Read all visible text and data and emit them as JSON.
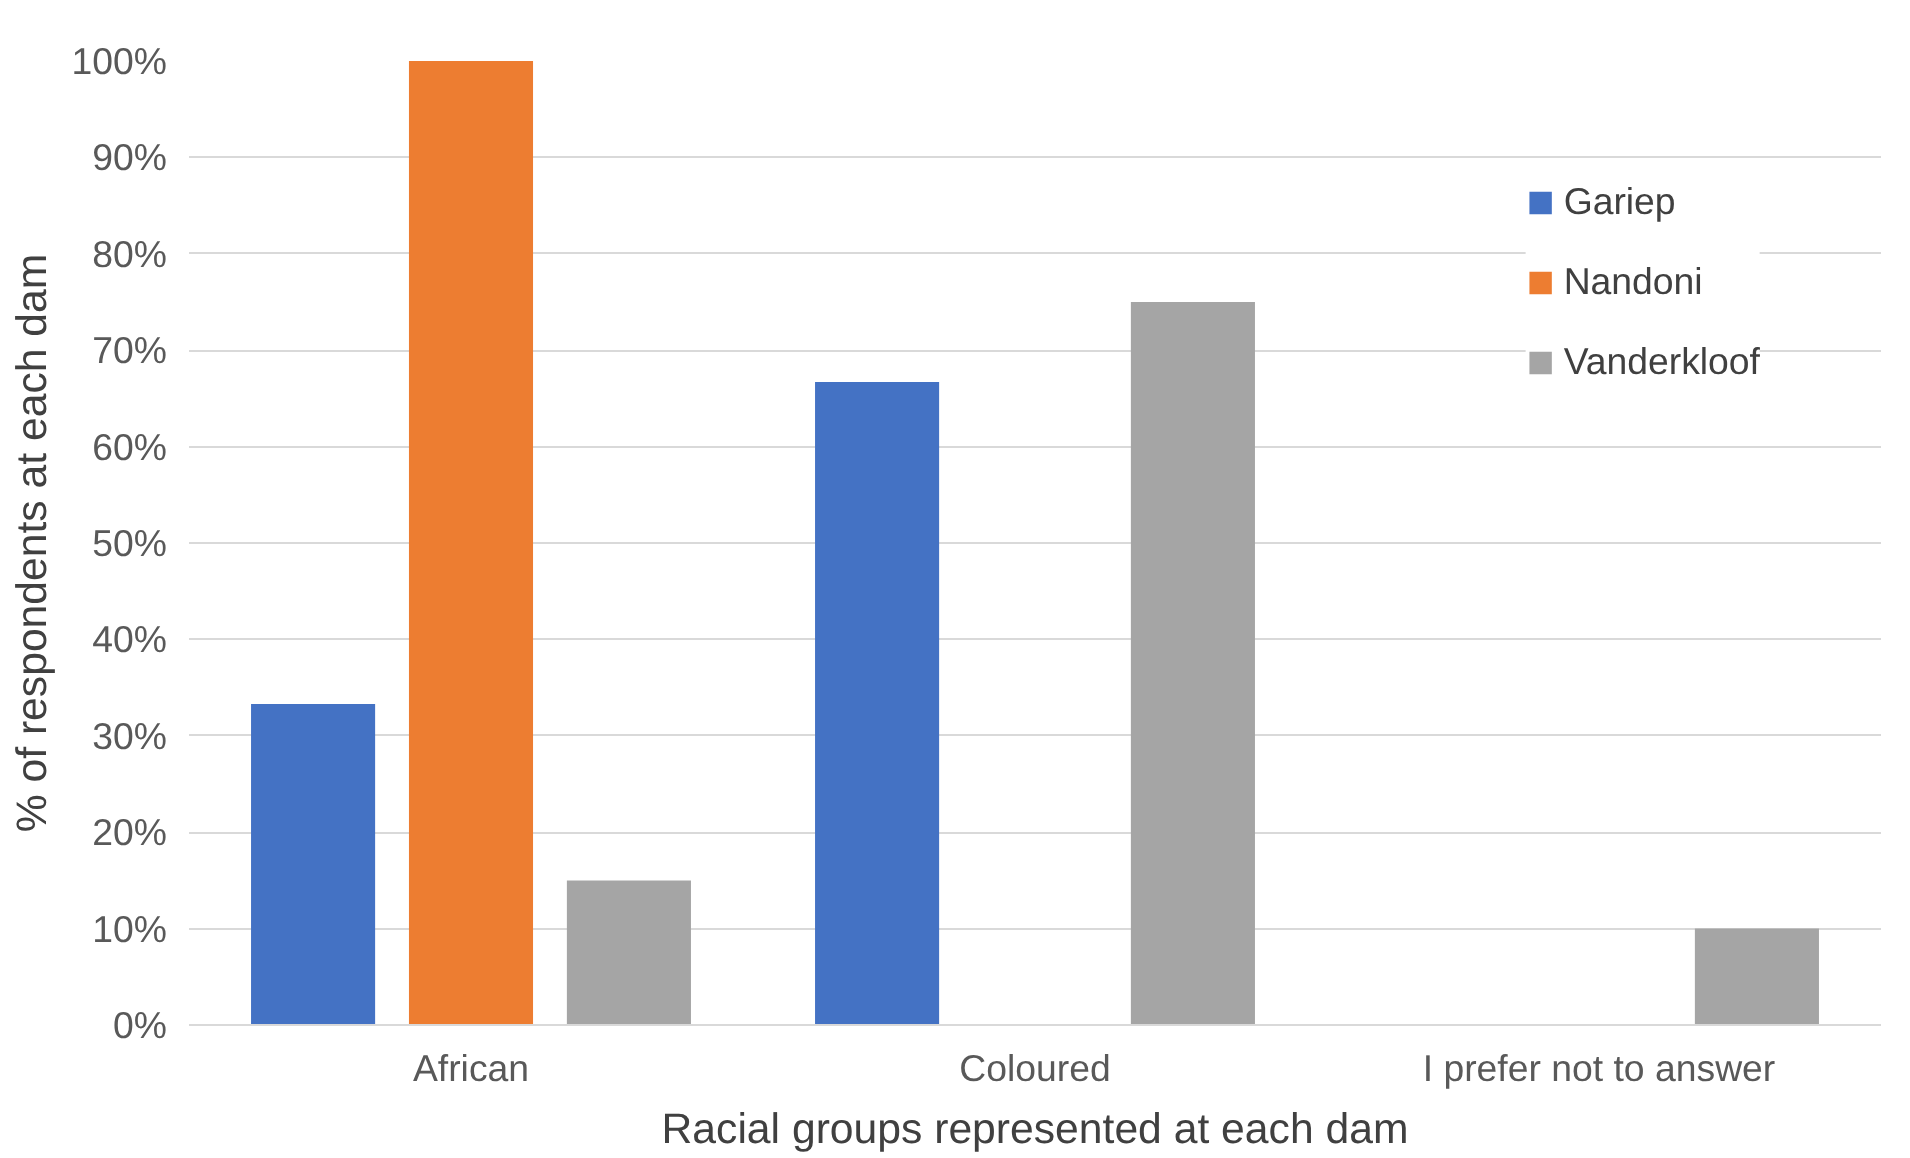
{
  "chart_data": {
    "type": "bar",
    "xlabel": "Racial groups represented at each dam",
    "ylabel": "% of respondents at each dam",
    "categories": [
      "African",
      "Coloured",
      "I prefer not to answer"
    ],
    "series": [
      {
        "name": "Gariep",
        "color": "#4472c4",
        "values": [
          33.3,
          66.7,
          0
        ]
      },
      {
        "name": "Nandoni",
        "color": "#ed7d31",
        "values": [
          100,
          0,
          0
        ]
      },
      {
        "name": "Vanderkloof",
        "color": "#a5a5a5",
        "values": [
          15,
          75,
          10
        ]
      }
    ],
    "ylim": [
      0,
      100
    ],
    "yticks": [
      {
        "value": 0,
        "label": "0%"
      },
      {
        "value": 10,
        "label": "10%"
      },
      {
        "value": 20,
        "label": "20%"
      },
      {
        "value": 30,
        "label": "30%"
      },
      {
        "value": 40,
        "label": "40%"
      },
      {
        "value": 50,
        "label": "50%"
      },
      {
        "value": 60,
        "label": "60%"
      },
      {
        "value": 70,
        "label": "70%"
      },
      {
        "value": 80,
        "label": "80%"
      },
      {
        "value": 90,
        "label": "90%"
      },
      {
        "value": 100,
        "label": "100%"
      }
    ],
    "grid": "y",
    "legend": "top right"
  }
}
